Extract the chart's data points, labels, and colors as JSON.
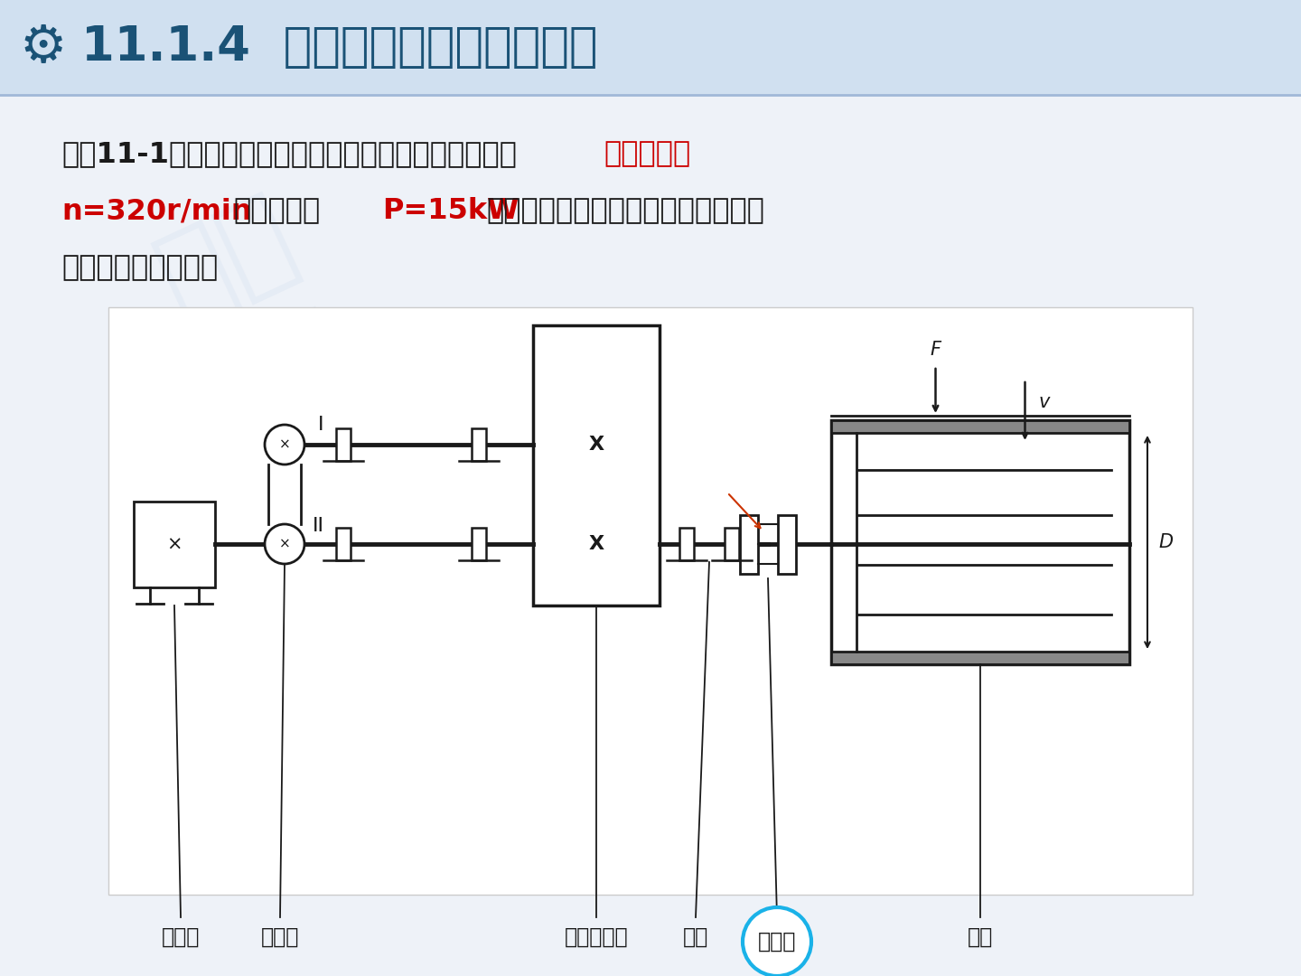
{
  "title": "11.1.4  联轴器的选择与实例分析",
  "title_color": "#1a5276",
  "title_fontsize": 38,
  "bg_color": "#eef2f8",
  "header_bg_color": "#d6e4f0",
  "text_color_normal": "#1a1a1a",
  "text_color_red": "#cc0000",
  "text_fontsize": 23,
  "label_fontsize": 17,
  "line1_normal": "【例11-1】在带式输送机传动装置中，其中齿轮减速器",
  "line1_red": "低速轴转速",
  "line2_red1": "n=320r/min",
  "line2_mid": "，传递功率",
  "line2_red2": "P=15kW",
  "line2_end": "，试对低速轴与输送机卷筒轴间的联",
  "line3": "轴器进行选型设计。",
  "labels": [
    "电动机",
    "带传动",
    "齿轮减速器",
    "轴承",
    "联轴器",
    "卷筒"
  ],
  "note_I": "I",
  "note_II": "II",
  "note_F": "F",
  "note_v": "v",
  "note_D": "D"
}
